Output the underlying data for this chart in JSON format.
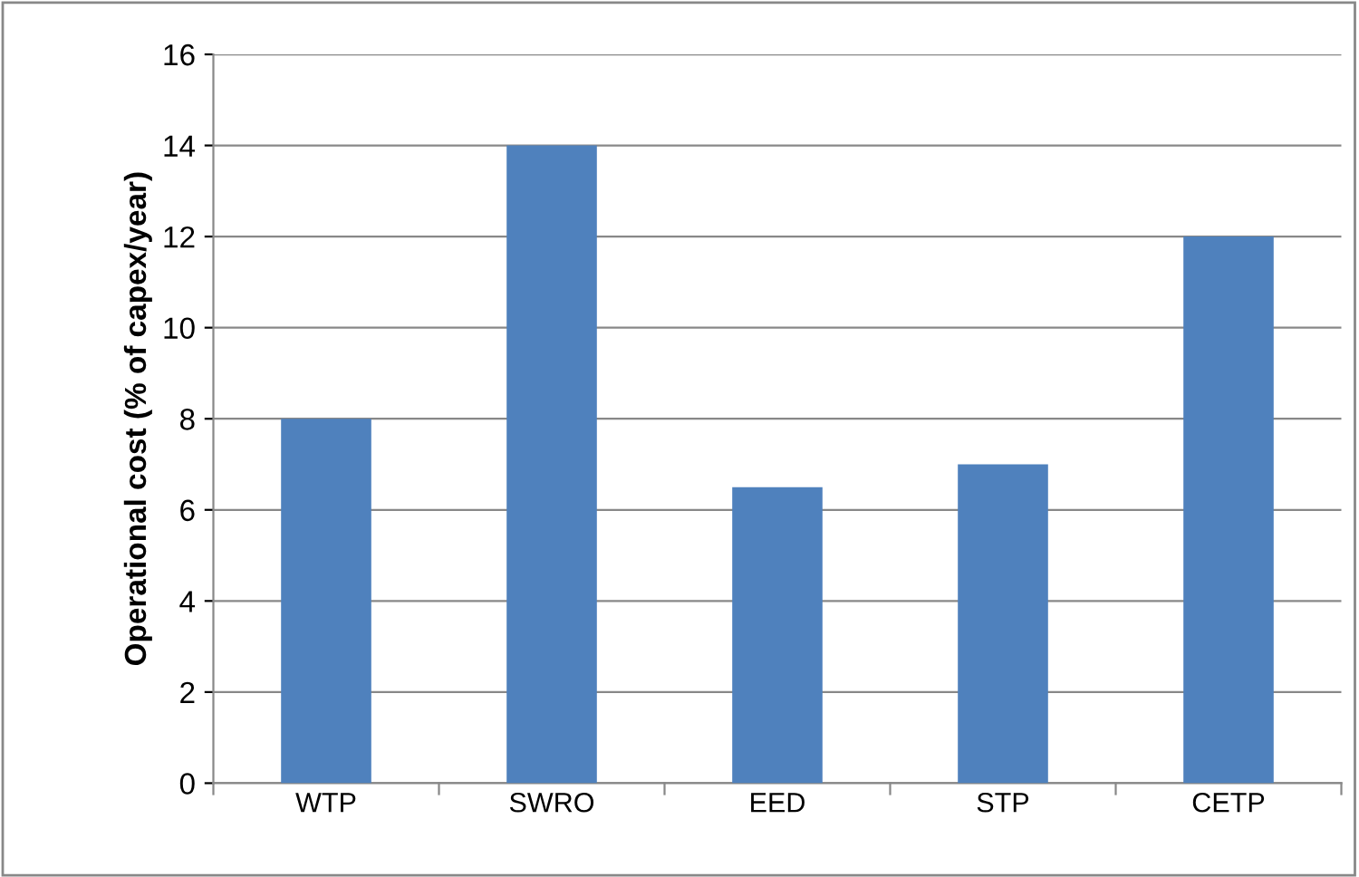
{
  "chart_data": {
    "type": "bar",
    "ylabel": "Operational cost (% of capex/year)",
    "categories": [
      "WTP",
      "SWRO",
      "EED",
      "STP",
      "CETP"
    ],
    "values": [
      8,
      14,
      6.5,
      7,
      12
    ],
    "color": "#4f81bd",
    "ylim": [
      0,
      16
    ],
    "yticks": [
      0,
      2,
      4,
      6,
      8,
      10,
      12,
      14,
      16
    ],
    "grid": "y"
  }
}
